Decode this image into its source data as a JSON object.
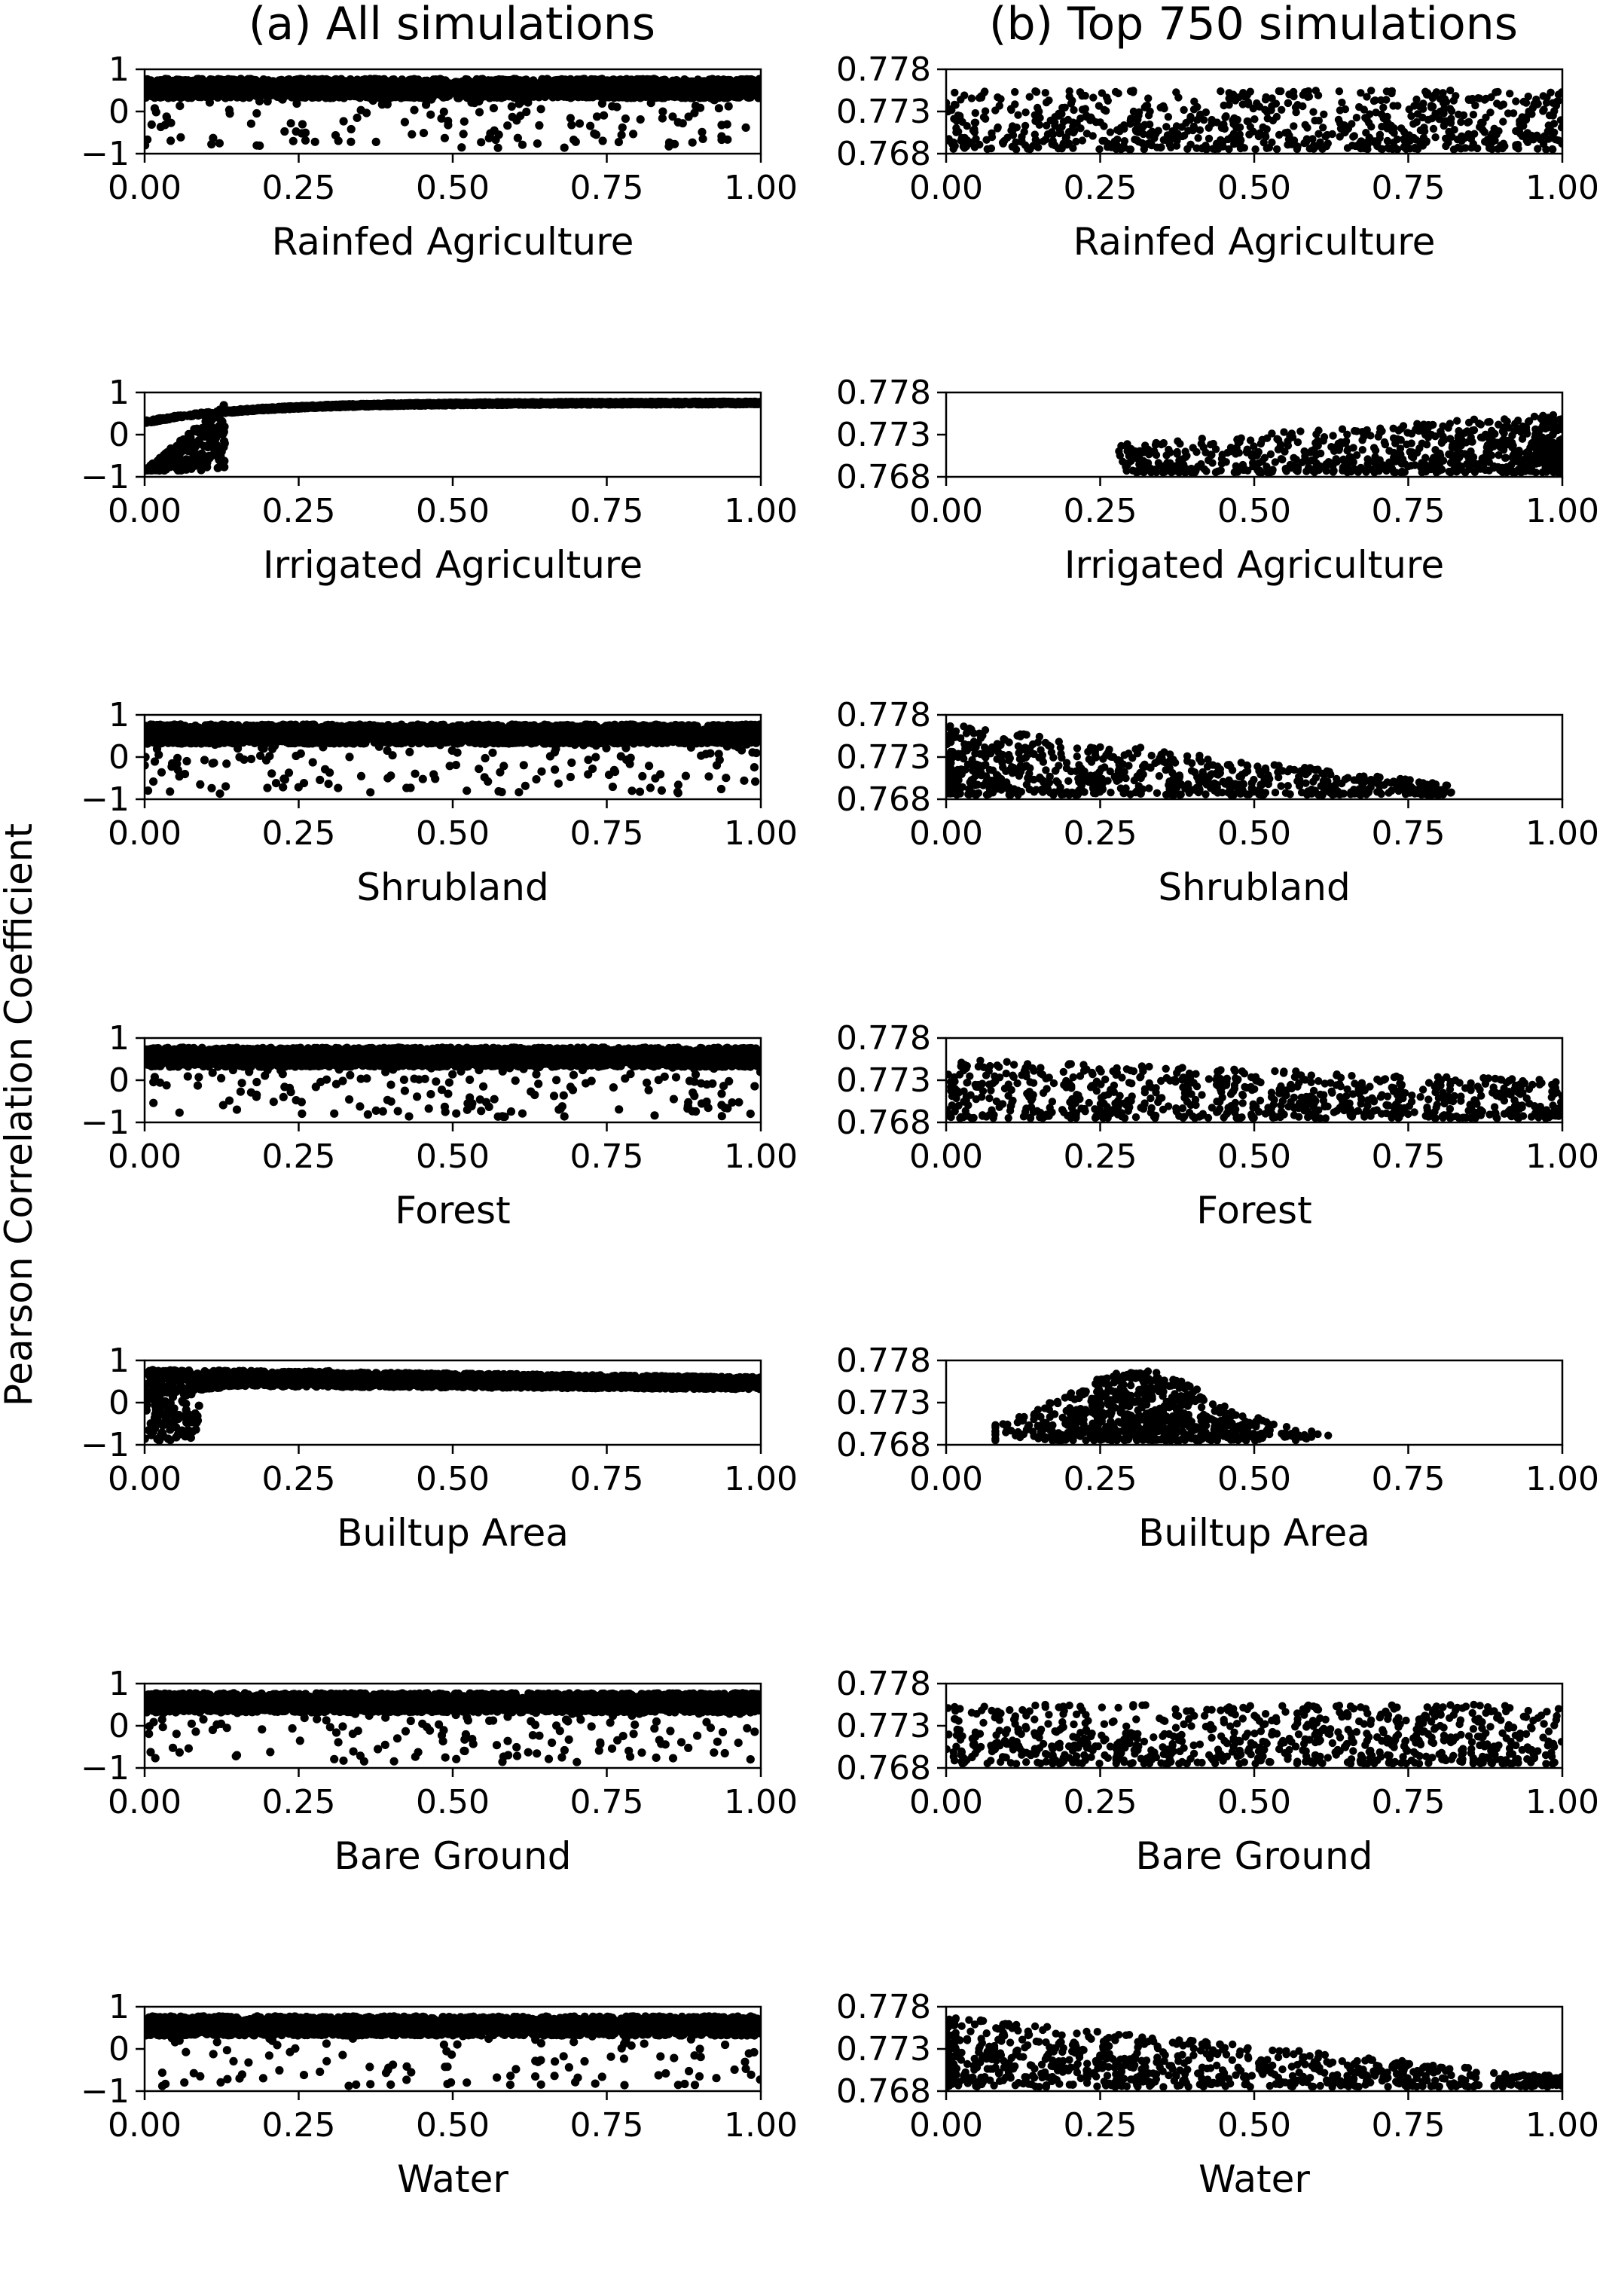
{
  "figure": {
    "ylabel": "Pearson Correlation Coefficient",
    "column_titles": [
      "(a)  All simulations",
      "(b)  Top 750 simulations"
    ]
  },
  "chart_data": [
    {
      "type": "scatter",
      "panel": "a",
      "row": 0,
      "xlabel": "Rainfed Agriculture",
      "xlim": [
        0,
        1
      ],
      "ylim": [
        -1,
        1
      ],
      "xticks": [
        "0.00",
        "0.25",
        "0.50",
        "0.75",
        "1.00"
      ],
      "yticks": [
        "1",
        "0",
        "−1"
      ],
      "pattern": "flat",
      "n_points": 2500
    },
    {
      "type": "scatter",
      "panel": "b",
      "row": 0,
      "xlabel": "Rainfed Agriculture",
      "xlim": [
        0,
        1
      ],
      "ylim": [
        0.768,
        0.778
      ],
      "xticks": [
        "0.00",
        "0.25",
        "0.50",
        "0.75",
        "1.00"
      ],
      "yticks": [
        "0.778",
        "0.773",
        "0.768"
      ],
      "pattern": "flat",
      "n_points": 750
    },
    {
      "type": "scatter",
      "panel": "a",
      "row": 1,
      "xlabel": "Irrigated Agriculture",
      "xlim": [
        0,
        1
      ],
      "ylim": [
        -1,
        1
      ],
      "xticks": [
        "0.00",
        "0.25",
        "0.50",
        "0.75",
        "1.00"
      ],
      "yticks": [
        "1",
        "0",
        "−1"
      ],
      "pattern": "rise",
      "n_points": 2500
    },
    {
      "type": "scatter",
      "panel": "b",
      "row": 1,
      "xlabel": "Irrigated Agriculture",
      "xlim": [
        0,
        1
      ],
      "ylim": [
        0.768,
        0.778
      ],
      "xticks": [
        "0.00",
        "0.25",
        "0.50",
        "0.75",
        "1.00"
      ],
      "yticks": [
        "0.778",
        "0.773",
        "0.768"
      ],
      "pattern": "right",
      "xrange": [
        0.28,
        1.0
      ],
      "n_points": 750
    },
    {
      "type": "scatter",
      "panel": "a",
      "row": 2,
      "xlabel": "Shrubland",
      "xlim": [
        0,
        1
      ],
      "ylim": [
        -1,
        1
      ],
      "xticks": [
        "0.00",
        "0.25",
        "0.50",
        "0.75",
        "1.00"
      ],
      "yticks": [
        "1",
        "0",
        "−1"
      ],
      "pattern": "flat",
      "n_points": 2500
    },
    {
      "type": "scatter",
      "panel": "b",
      "row": 2,
      "xlabel": "Shrubland",
      "xlim": [
        0,
        1
      ],
      "ylim": [
        0.768,
        0.778
      ],
      "xticks": [
        "0.00",
        "0.25",
        "0.50",
        "0.75",
        "1.00"
      ],
      "yticks": [
        "0.778",
        "0.773",
        "0.768"
      ],
      "pattern": "decline",
      "xrange": [
        0.0,
        0.82
      ],
      "n_points": 750
    },
    {
      "type": "scatter",
      "panel": "a",
      "row": 3,
      "xlabel": "Forest",
      "xlim": [
        0,
        1
      ],
      "ylim": [
        -1,
        1
      ],
      "xticks": [
        "0.00",
        "0.25",
        "0.50",
        "0.75",
        "1.00"
      ],
      "yticks": [
        "1",
        "0",
        "−1"
      ],
      "pattern": "flat",
      "n_points": 2500
    },
    {
      "type": "scatter",
      "panel": "b",
      "row": 3,
      "xlabel": "Forest",
      "xlim": [
        0,
        1
      ],
      "ylim": [
        0.768,
        0.778
      ],
      "xticks": [
        "0.00",
        "0.25",
        "0.50",
        "0.75",
        "1.00"
      ],
      "yticks": [
        "0.778",
        "0.773",
        "0.768"
      ],
      "pattern": "flat-decline",
      "n_points": 750
    },
    {
      "type": "scatter",
      "panel": "a",
      "row": 4,
      "xlabel": "Builtup Area",
      "xlim": [
        0,
        1
      ],
      "ylim": [
        -1,
        1
      ],
      "xticks": [
        "0.00",
        "0.25",
        "0.50",
        "0.75",
        "1.00"
      ],
      "yticks": [
        "1",
        "0",
        "−1"
      ],
      "pattern": "rise-fall",
      "n_points": 2500
    },
    {
      "type": "scatter",
      "panel": "b",
      "row": 4,
      "xlabel": "Builtup Area",
      "xlim": [
        0,
        1
      ],
      "ylim": [
        0.768,
        0.778
      ],
      "xticks": [
        "0.00",
        "0.25",
        "0.50",
        "0.75",
        "1.00"
      ],
      "yticks": [
        "0.778",
        "0.773",
        "0.768"
      ],
      "pattern": "hump",
      "xrange": [
        0.08,
        0.62
      ],
      "n_points": 750
    },
    {
      "type": "scatter",
      "panel": "a",
      "row": 5,
      "xlabel": "Bare Ground",
      "xlim": [
        0,
        1
      ],
      "ylim": [
        -1,
        1
      ],
      "xticks": [
        "0.00",
        "0.25",
        "0.50",
        "0.75",
        "1.00"
      ],
      "yticks": [
        "1",
        "0",
        "−1"
      ],
      "pattern": "flat",
      "n_points": 2500
    },
    {
      "type": "scatter",
      "panel": "b",
      "row": 5,
      "xlabel": "Bare Ground",
      "xlim": [
        0,
        1
      ],
      "ylim": [
        0.768,
        0.778
      ],
      "xticks": [
        "0.00",
        "0.25",
        "0.50",
        "0.75",
        "1.00"
      ],
      "yticks": [
        "0.778",
        "0.773",
        "0.768"
      ],
      "pattern": "flat",
      "n_points": 750
    },
    {
      "type": "scatter",
      "panel": "a",
      "row": 6,
      "xlabel": "Water",
      "xlim": [
        0,
        1
      ],
      "ylim": [
        -1,
        1
      ],
      "xticks": [
        "0.00",
        "0.25",
        "0.50",
        "0.75",
        "1.00"
      ],
      "yticks": [
        "1",
        "0",
        "−1"
      ],
      "pattern": "flat",
      "n_points": 2500
    },
    {
      "type": "scatter",
      "panel": "b",
      "row": 6,
      "xlabel": "Water",
      "xlim": [
        0,
        1
      ],
      "ylim": [
        0.768,
        0.778
      ],
      "xticks": [
        "0.00",
        "0.25",
        "0.50",
        "0.75",
        "1.00"
      ],
      "yticks": [
        "0.778",
        "0.773",
        "0.768"
      ],
      "pattern": "decline",
      "xrange": [
        0.0,
        1.0
      ],
      "n_points": 750
    }
  ]
}
